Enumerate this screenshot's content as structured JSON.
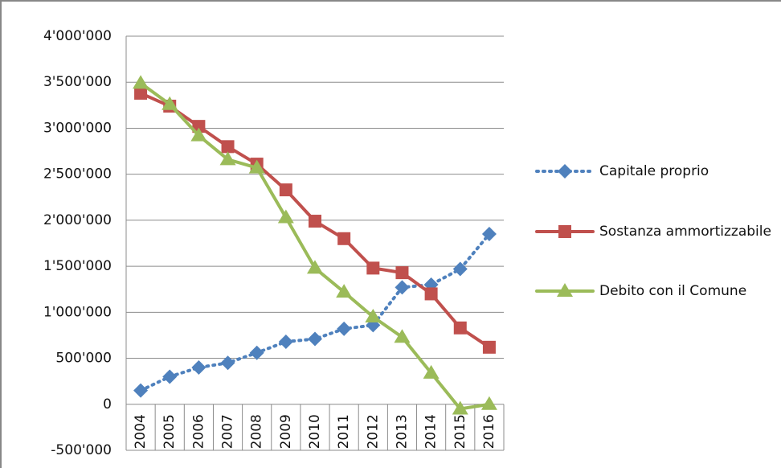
{
  "chart_data": {
    "type": "line",
    "categories": [
      "2004",
      "2005",
      "2006",
      "2007",
      "2008",
      "2009",
      "2010",
      "2011",
      "2012",
      "2013",
      "2014",
      "2015",
      "2016"
    ],
    "series": [
      {
        "name": "Capitale proprio",
        "color": "#4f81bd",
        "marker": "diamond",
        "line_style": "dotted",
        "values": [
          150000,
          300000,
          400000,
          450000,
          560000,
          680000,
          710000,
          820000,
          860000,
          1270000,
          1300000,
          1470000,
          1850000
        ]
      },
      {
        "name": "Sostanza ammortizzabile",
        "color": "#c0504d",
        "marker": "square",
        "line_style": "solid",
        "values": [
          3380000,
          3240000,
          3020000,
          2800000,
          2610000,
          2330000,
          1990000,
          1800000,
          1480000,
          1430000,
          1200000,
          830000,
          620000
        ]
      },
      {
        "name": "Debito con il Comune",
        "color": "#9bbb59",
        "marker": "triangle",
        "line_style": "solid",
        "values": [
          3490000,
          3260000,
          2920000,
          2660000,
          2570000,
          2030000,
          1480000,
          1220000,
          950000,
          730000,
          340000,
          -50000,
          0
        ]
      }
    ],
    "ylim": [
      -500000,
      4000000
    ],
    "yticks": [
      {
        "value": -500000,
        "label": "-500'000"
      },
      0,
      {
        "value": 500000,
        "label": "500'000"
      },
      {
        "value": 1000000,
        "label": "1'000'000"
      },
      {
        "value": 1500000,
        "label": "1'500'000"
      },
      {
        "value": 2000000,
        "label": "2'000'000"
      },
      {
        "value": 2500000,
        "label": "2'500'000"
      },
      {
        "value": 3000000,
        "label": "3'000'000"
      },
      {
        "value": 3500000,
        "label": "3'500'000"
      },
      {
        "value": 4000000,
        "label": "4'000'000"
      }
    ],
    "grid": true,
    "legend": "right"
  }
}
